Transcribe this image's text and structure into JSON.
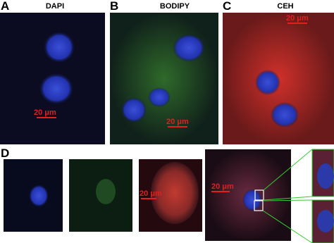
{
  "panels": [
    {
      "letter": "A",
      "title": "DAPI",
      "scale_bar": "20 μm"
    },
    {
      "letter": "B",
      "title": "BODIPY",
      "scale_bar": "20 μm"
    },
    {
      "letter": "C",
      "title": "CEH",
      "scale_bar": "20 μm"
    }
  ],
  "panel_d": {
    "letter": "D",
    "scale_bars": [
      "20 μm",
      "20 μm"
    ]
  }
}
